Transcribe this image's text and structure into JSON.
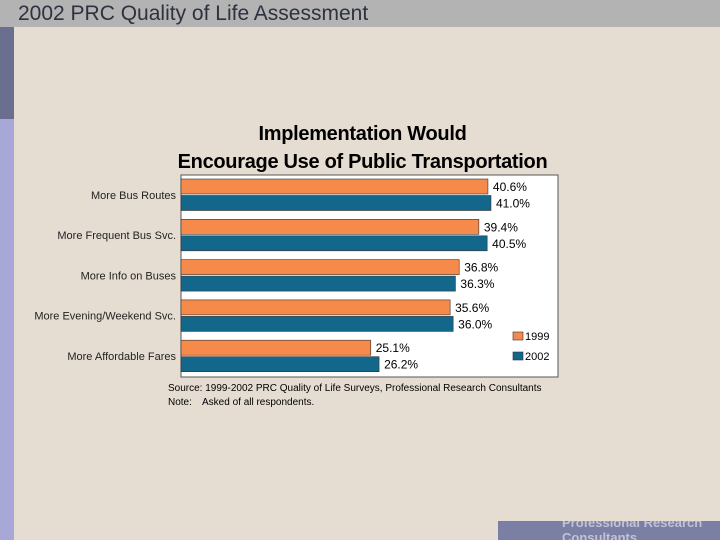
{
  "slide": {
    "header_title": "2002 PRC Quality of Life Assessment",
    "footer_text": "Professional Research Consultants"
  },
  "chart_data": {
    "type": "bar",
    "orientation": "horizontal",
    "title_line1": "Implementation Would",
    "title_line2": "Encourage Use of Public Transportation",
    "categories": [
      "More Bus Routes",
      "More Frequent Bus Svc.",
      "More Info on Buses",
      "More Evening/Weekend Svc.",
      "More Affordable Fares"
    ],
    "series": [
      {
        "name": "1999",
        "values": [
          40.6,
          39.4,
          36.8,
          35.6,
          25.1
        ],
        "labels": [
          "40.6%",
          "39.4%",
          "36.8%",
          "35.6%",
          "25.1%"
        ]
      },
      {
        "name": "2002",
        "values": [
          41.0,
          40.5,
          36.3,
          36.0,
          26.2
        ],
        "labels": [
          "41.0%",
          "40.5%",
          "36.3%",
          "36.0%",
          "26.2%"
        ]
      }
    ],
    "colors": {
      "1999": "#f58a4b",
      "2002": "#13678a"
    },
    "xlim": [
      0,
      50
    ],
    "legend_position": "bottom-right",
    "source": "Source: 1999-2002 PRC Quality of Life Surveys, Professional Research Consultants",
    "note_label": "Note:",
    "note_text": "Asked of all respondents."
  }
}
